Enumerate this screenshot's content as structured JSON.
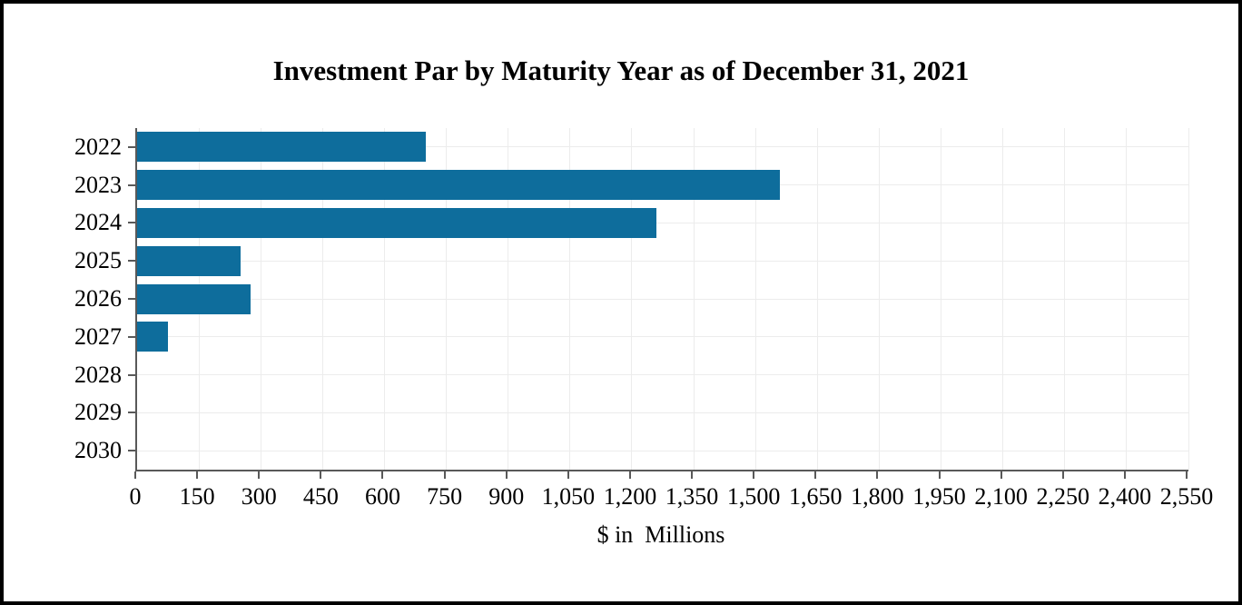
{
  "chart_data": {
    "type": "bar",
    "orientation": "horizontal",
    "title": "Investment Par by Maturity Year as of December 31, 2021",
    "categories": [
      "2022",
      "2023",
      "2024",
      "2025",
      "2026",
      "2027",
      "2028",
      "2029",
      "2030"
    ],
    "values": [
      700,
      1560,
      1260,
      250,
      275,
      75,
      0,
      0,
      0
    ],
    "xlabel": "$ in  Millions",
    "ylabel": "",
    "xlim": [
      0,
      2550
    ],
    "xtick_step": 150,
    "xtick_labels": [
      "0",
      "150",
      "300",
      "450",
      "600",
      "750",
      "900",
      "1,050",
      "1,200",
      "1,350",
      "1,500",
      "1,650",
      "1,800",
      "1,950",
      "2,100",
      "2,250",
      "2,400",
      "2,550"
    ],
    "grid": "both",
    "legend": false,
    "bar_color": "#0e6d9c",
    "axis_color": "#595959",
    "gridline_color": "#ececec",
    "frame_border_color": "#000000",
    "background_color": "#ffffff"
  }
}
